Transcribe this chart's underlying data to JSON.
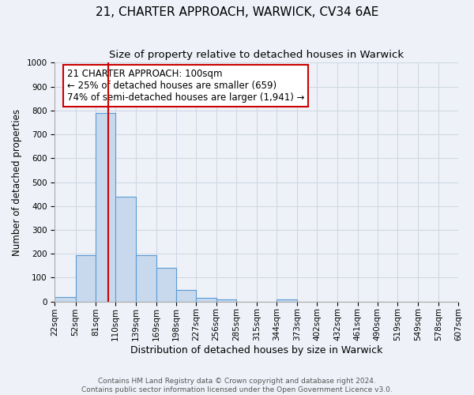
{
  "title": "21, CHARTER APPROACH, WARWICK, CV34 6AE",
  "subtitle": "Size of property relative to detached houses in Warwick",
  "xlabel": "Distribution of detached houses by size in Warwick",
  "ylabel": "Number of detached properties",
  "bin_edges": [
    22,
    52,
    81,
    110,
    139,
    169,
    198,
    227,
    256,
    285,
    315,
    344,
    373,
    402,
    432,
    461,
    490,
    519,
    549,
    578,
    607
  ],
  "bar_heights": [
    20,
    195,
    790,
    440,
    195,
    140,
    50,
    15,
    10,
    0,
    0,
    10,
    0,
    0,
    0,
    0,
    0,
    0,
    0,
    0
  ],
  "bar_color": "#c8d9ed",
  "bar_edgecolor": "#5b9bd5",
  "grid_color": "#d0d8e4",
  "property_line_x": 100,
  "property_line_color": "#cc0000",
  "annotation_line1": "21 CHARTER APPROACH: 100sqm",
  "annotation_line2": "← 25% of detached houses are smaller (659)",
  "annotation_line3": "74% of semi-detached houses are larger (1,941) →",
  "annotation_box_edgecolor": "#cc0000",
  "annotation_box_facecolor": "#ffffff",
  "ylim": [
    0,
    1000
  ],
  "yticks": [
    0,
    100,
    200,
    300,
    400,
    500,
    600,
    700,
    800,
    900,
    1000
  ],
  "footer_line1": "Contains HM Land Registry data © Crown copyright and database right 2024.",
  "footer_line2": "Contains public sector information licensed under the Open Government Licence v3.0.",
  "title_fontsize": 11,
  "subtitle_fontsize": 9.5,
  "xlabel_fontsize": 9,
  "ylabel_fontsize": 8.5,
  "tick_fontsize": 7.5,
  "annotation_fontsize": 8.5,
  "footer_fontsize": 6.5,
  "background_color": "#eef2f8"
}
